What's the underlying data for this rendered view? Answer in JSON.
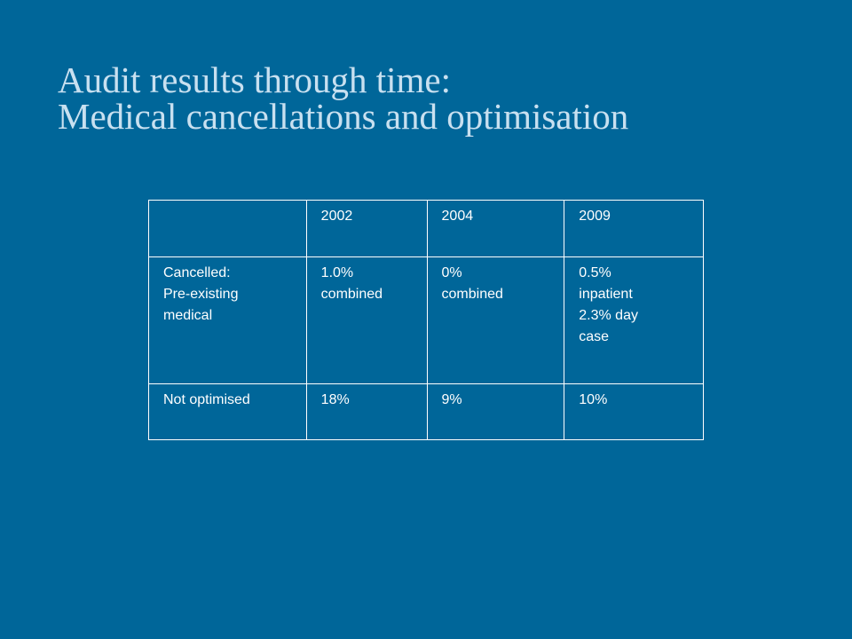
{
  "slide": {
    "title_line1": "Audit results through time:",
    "title_line2": "Medical cancellations and optimisation"
  },
  "table": {
    "header": [
      "",
      "2002",
      "2004",
      "2009"
    ],
    "rows": [
      {
        "label": "Cancelled:\nPre-existing\nmedical",
        "values": [
          "1.0%\ncombined",
          "0%\ncombined",
          "0.5%\ninpatient\n2.3% day\ncase"
        ]
      },
      {
        "label": "Not optimised",
        "values": [
          "18%",
          "9%",
          "10%"
        ]
      }
    ]
  },
  "colors": {
    "background": "#006699",
    "title": "#c8e0f0",
    "text": "#ffffff"
  }
}
